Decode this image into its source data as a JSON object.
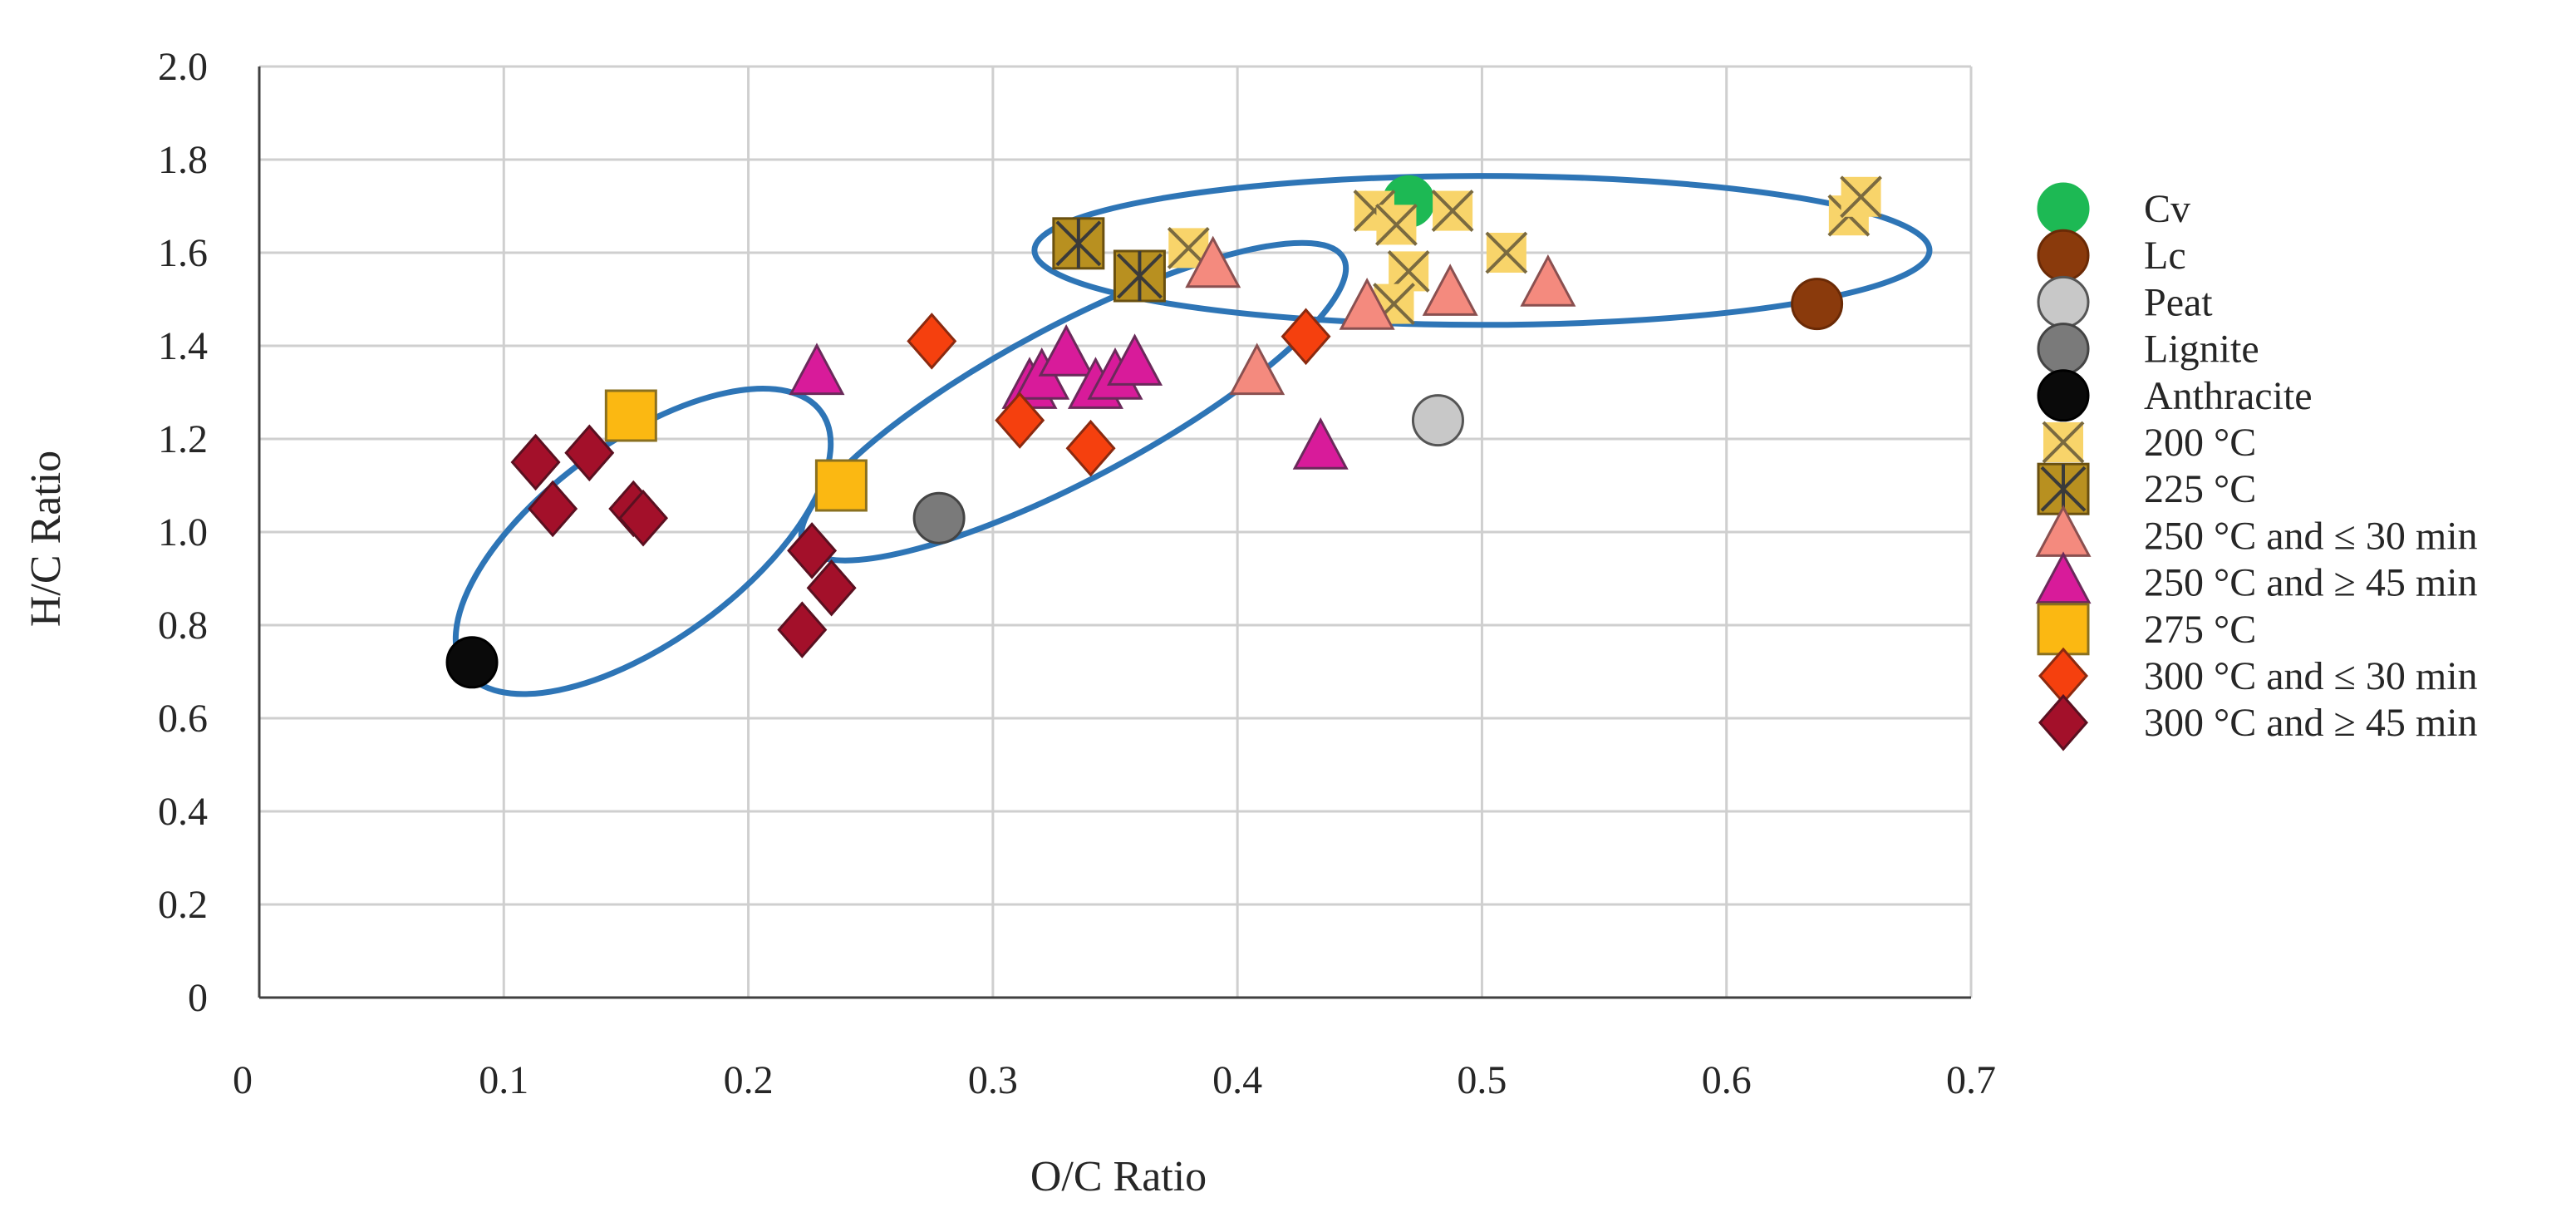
{
  "chart_data": {
    "type": "scatter",
    "title": "",
    "xlabel": "O/C Ratio",
    "ylabel": "H/C Ratio",
    "xlim": [
      0,
      0.7
    ],
    "ylim": [
      0,
      2.0
    ],
    "x_ticks": [
      "0",
      "0.1",
      "0.2",
      "0.3",
      "0.4",
      "0.5",
      "0.6",
      "0.7"
    ],
    "y_ticks": [
      "0",
      "0.2",
      "0.4",
      "0.6",
      "0.8",
      "1.0",
      "1.2",
      "1.4",
      "1.6",
      "1.8",
      "2.0"
    ],
    "grid": true,
    "legend_position": "right",
    "series": [
      {
        "name": "Cv",
        "marker": "circle",
        "fill": "#1db954",
        "stroke": "#1db954",
        "points": [
          [
            0.47,
            1.71
          ]
        ]
      },
      {
        "name": "Lc",
        "marker": "circle",
        "fill": "#8a3a0c",
        "stroke": "#6a2a06",
        "points": [
          [
            0.637,
            1.49
          ]
        ]
      },
      {
        "name": "Peat",
        "marker": "circle",
        "fill": "#c8c8c8",
        "stroke": "#555555",
        "points": [
          [
            0.482,
            1.24
          ]
        ]
      },
      {
        "name": "Lignite",
        "marker": "circle",
        "fill": "#7a7a7a",
        "stroke": "#444444",
        "points": [
          [
            0.278,
            1.03
          ]
        ]
      },
      {
        "name": "Anthracite",
        "marker": "circle",
        "fill": "#0a0a0a",
        "stroke": "#000000",
        "points": [
          [
            0.087,
            0.72
          ]
        ]
      },
      {
        "name": "200 °C",
        "marker": "x-square",
        "fill": "#f8d46a",
        "stroke": "#7a6a40",
        "points": [
          [
            0.38,
            1.61
          ],
          [
            0.456,
            1.69
          ],
          [
            0.465,
            1.66
          ],
          [
            0.488,
            1.69
          ],
          [
            0.47,
            1.56
          ],
          [
            0.464,
            1.49
          ],
          [
            0.51,
            1.6
          ],
          [
            0.65,
            1.68
          ],
          [
            0.655,
            1.72
          ]
        ]
      },
      {
        "name": "225 °C",
        "marker": "asterisk-square",
        "fill": "#b89020",
        "stroke": "#3a3a3a",
        "points": [
          [
            0.335,
            1.62
          ],
          [
            0.36,
            1.55
          ]
        ]
      },
      {
        "name": "250 °C and ≤ 30 min",
        "marker": "triangle",
        "fill": "#f48a7e",
        "stroke": "#8a5050",
        "points": [
          [
            0.39,
            1.57
          ],
          [
            0.408,
            1.34
          ],
          [
            0.453,
            1.48
          ],
          [
            0.487,
            1.51
          ],
          [
            0.527,
            1.53
          ]
        ]
      },
      {
        "name": "250 °C and ≥ 45 min",
        "marker": "triangle",
        "fill": "#d81b9a",
        "stroke": "#6a2a5a",
        "points": [
          [
            0.228,
            1.34
          ],
          [
            0.315,
            1.31
          ],
          [
            0.32,
            1.33
          ],
          [
            0.33,
            1.38
          ],
          [
            0.342,
            1.31
          ],
          [
            0.35,
            1.33
          ],
          [
            0.358,
            1.36
          ],
          [
            0.434,
            1.18
          ]
        ]
      },
      {
        "name": "275 °C",
        "marker": "square",
        "fill": "#fbb812",
        "stroke": "#8a7020",
        "points": [
          [
            0.152,
            1.25
          ],
          [
            0.238,
            1.1
          ]
        ]
      },
      {
        "name": "300 °C and ≤ 30 min",
        "marker": "diamond",
        "fill": "#f5400e",
        "stroke": "#8a2a10",
        "points": [
          [
            0.275,
            1.41
          ],
          [
            0.311,
            1.24
          ],
          [
            0.34,
            1.18
          ],
          [
            0.428,
            1.42
          ]
        ]
      },
      {
        "name": "300 °C and ≥ 45 min",
        "marker": "diamond",
        "fill": "#a3102a",
        "stroke": "#5a1020",
        "points": [
          [
            0.113,
            1.15
          ],
          [
            0.12,
            1.05
          ],
          [
            0.135,
            1.17
          ],
          [
            0.153,
            1.05
          ],
          [
            0.157,
            1.03
          ],
          [
            0.226,
            0.96
          ],
          [
            0.234,
            0.88
          ],
          [
            0.222,
            0.79
          ]
        ]
      }
    ],
    "ellipses": [
      {
        "cx": 0.157,
        "cy": 0.98,
        "rx": 0.09,
        "ry": 0.215,
        "rotation_deg": 36
      },
      {
        "cx": 0.333,
        "cy": 1.28,
        "rx": 0.125,
        "ry": 0.165,
        "rotation_deg": 28
      },
      {
        "cx": 0.5,
        "cy": 1.605,
        "rx": 0.183,
        "ry": 0.16,
        "rotation_deg": 0
      }
    ],
    "ellipse_color": "#2e75b6"
  }
}
